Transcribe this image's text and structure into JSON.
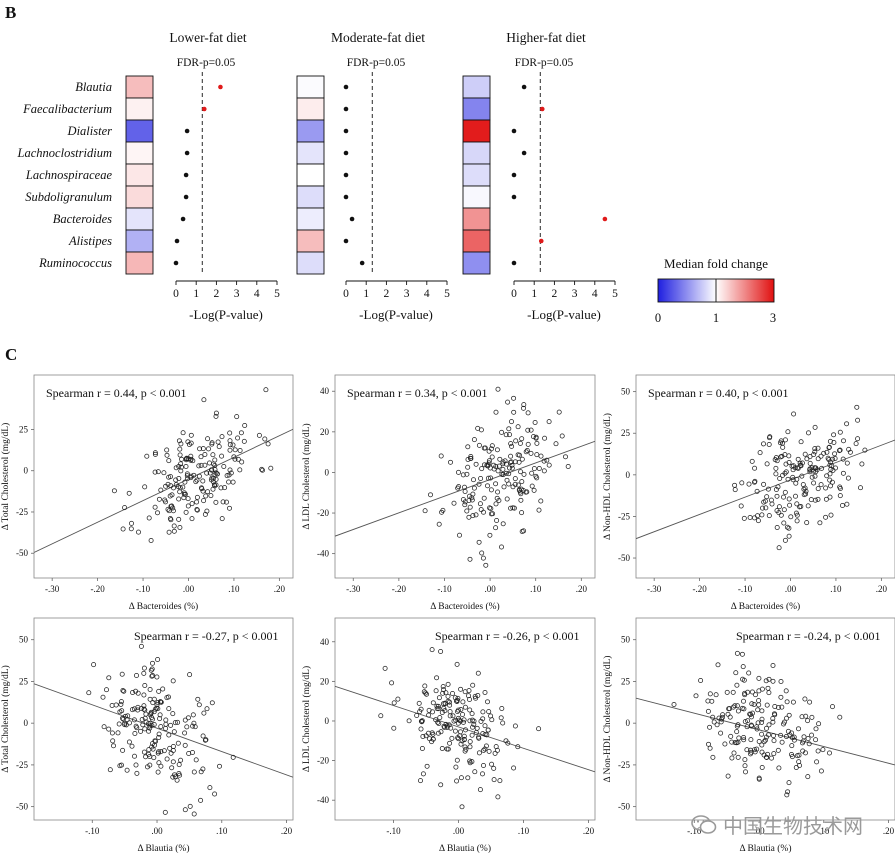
{
  "panel_b_label": "B",
  "panel_c_label": "C",
  "watermark_text": "中国生物技术网",
  "heatmap_panels": {
    "taxa": [
      "Blautia",
      "Faecalibacterium",
      "Dialister",
      "Lachnoclostridium",
      "Lachnospiraceae",
      "Subdoligranulum",
      "Bacteroides",
      "Alistipes",
      "Ruminococcus"
    ],
    "fdr_label": "FDR-p=0.05",
    "xlabel": "-Log(P-value)",
    "xticks": [
      0,
      1,
      2,
      3,
      4,
      5
    ],
    "legend": {
      "title": "Median fold change",
      "ticks": [
        "0",
        "1",
        "3"
      ],
      "colors": {
        "low": "#1f1fe0",
        "mid": "#ffffff",
        "high": "#e01010"
      }
    },
    "panels": [
      {
        "title": "Lower-fat diet",
        "fold_change": [
          1.55,
          1.12,
          0.3,
          1.08,
          1.2,
          1.3,
          0.88,
          0.65,
          1.6
        ],
        "neglog_p": [
          2.2,
          1.4,
          0.55,
          0.55,
          0.5,
          0.5,
          0.35,
          0.05,
          0.0
        ],
        "significant": [
          true,
          true,
          false,
          false,
          false,
          false,
          false,
          false,
          false
        ]
      },
      {
        "title": "Moderate-fat diet",
        "fold_change": [
          0.98,
          1.15,
          0.55,
          0.88,
          1.0,
          0.85,
          0.92,
          1.55,
          0.85
        ],
        "neglog_p": [
          0.0,
          0.0,
          0.0,
          0.0,
          0.0,
          0.0,
          0.3,
          0.0,
          0.8
        ],
        "significant": [
          false,
          false,
          false,
          false,
          false,
          false,
          false,
          false,
          false
        ]
      },
      {
        "title": "Higher-fat diet",
        "fold_change": [
          0.78,
          0.45,
          2.9,
          0.82,
          0.85,
          0.97,
          1.9,
          2.3,
          0.5
        ],
        "neglog_p": [
          0.5,
          1.4,
          0.0,
          0.5,
          0.0,
          0.0,
          4.5,
          1.35,
          0.0
        ],
        "significant": [
          false,
          true,
          false,
          false,
          false,
          false,
          true,
          true,
          false
        ]
      }
    ]
  },
  "chart_data": [
    {
      "type": "scatter",
      "stat": "Spearman r = 0.44, p < 0.001",
      "xlabel": "Δ Bacteroides (%)",
      "ylabel": "Δ Total Cholesterol (mg/dL)",
      "xlim": [
        -0.34,
        0.23
      ],
      "ylim": [
        -65,
        58
      ],
      "xticks": [
        "-.30",
        "-.20",
        "-.10",
        ".00",
        ".10",
        ".20"
      ],
      "xtick_vals": [
        -0.3,
        -0.2,
        -0.1,
        0.0,
        0.1,
        0.2
      ],
      "yticks": [
        "-50",
        "-25",
        "0",
        "25"
      ],
      "ytick_vals": [
        -50,
        -25,
        0,
        25
      ],
      "fit": {
        "slope": 131,
        "intercept": -5
      },
      "seed": 11,
      "center_x": 0.02,
      "sd_x": 0.065,
      "sd_y": 16
    },
    {
      "type": "scatter",
      "stat": "Spearman r = 0.34, p < 0.001",
      "xlabel": "Δ Bacteroides (%)",
      "ylabel": "Δ LDL Cholesterol (mg/dL)",
      "xlim": [
        -0.34,
        0.23
      ],
      "ylim": [
        -52,
        48
      ],
      "xticks": [
        "-.30",
        "-.20",
        "-.10",
        ".00",
        ".10",
        ".20"
      ],
      "xtick_vals": [
        -0.3,
        -0.2,
        -0.1,
        0.0,
        0.1,
        0.2
      ],
      "yticks": [
        "-40",
        "-20",
        "0",
        "20",
        "40"
      ],
      "ytick_vals": [
        -40,
        -20,
        0,
        20,
        40
      ],
      "fit": {
        "slope": 82,
        "intercept": -3.5
      },
      "seed": 23,
      "center_x": 0.02,
      "sd_x": 0.06,
      "sd_y": 14
    },
    {
      "type": "scatter",
      "stat": "Spearman r = 0.40, p < 0.001",
      "xlabel": "Δ Bacteroides (%)",
      "ylabel": "Δ Non-HDL Cholesterol (mg/dL)",
      "xlim": [
        -0.34,
        0.23
      ],
      "ylim": [
        -62,
        60
      ],
      "xticks": [
        "-.30",
        "-.20",
        "-.10",
        ".00",
        ".10",
        ".20"
      ],
      "xtick_vals": [
        -0.3,
        -0.2,
        -0.1,
        0.0,
        0.1,
        0.2
      ],
      "yticks": [
        "-50",
        "-25",
        "0",
        "25",
        "50"
      ],
      "ytick_vals": [
        -50,
        -25,
        0,
        25,
        50
      ],
      "fit": {
        "slope": 104,
        "intercept": -3
      },
      "seed": 37,
      "center_x": 0.02,
      "sd_x": 0.06,
      "sd_y": 16
    },
    {
      "type": "scatter",
      "stat": "Spearman r = -0.27, p < 0.001",
      "xlabel": "Δ Blautia (%)",
      "ylabel": "Δ Total Cholesterol (mg/dL)",
      "xlim": [
        -0.19,
        0.21
      ],
      "ylim": [
        -58,
        63
      ],
      "xticks": [
        "-.10",
        ".00",
        ".10",
        ".20"
      ],
      "xtick_vals": [
        -0.1,
        0.0,
        0.1,
        0.2
      ],
      "yticks": [
        "-50",
        "-25",
        "0",
        "25",
        "50"
      ],
      "ytick_vals": [
        -50,
        -25,
        0,
        25,
        50
      ],
      "fit": {
        "slope": -140,
        "intercept": -3
      },
      "seed": 41,
      "center_x": 0.0,
      "sd_x": 0.045,
      "sd_y": 17
    },
    {
      "type": "scatter",
      "stat": "Spearman r = -0.26, p < 0.001",
      "xlabel": "Δ Blautia (%)",
      "ylabel": "Δ LDL Cholesterol (mg/dL)",
      "xlim": [
        -0.19,
        0.21
      ],
      "ylim": [
        -50,
        52
      ],
      "xticks": [
        "-.10",
        ".00",
        ".10",
        ".20"
      ],
      "xtick_vals": [
        -0.1,
        0.0,
        0.1,
        0.2
      ],
      "yticks": [
        "-40",
        "-20",
        "0",
        "20",
        "40"
      ],
      "ytick_vals": [
        -40,
        -20,
        0,
        20,
        40
      ],
      "fit": {
        "slope": -108,
        "intercept": -3
      },
      "seed": 53,
      "center_x": 0.0,
      "sd_x": 0.045,
      "sd_y": 14
    },
    {
      "type": "scatter",
      "stat": "Spearman r = -0.24, p < 0.001",
      "xlabel": "Δ Blautia (%)",
      "ylabel": "Δ Non-HDL Cholesterol (mg/dL)",
      "xlim": [
        -0.19,
        0.21
      ],
      "ylim": [
        -58,
        63
      ],
      "xticks": [
        "-.10",
        ".00",
        ".10",
        ".20"
      ],
      "xtick_vals": [
        -0.1,
        0.0,
        0.1,
        0.2
      ],
      "yticks": [
        "-50",
        "-25",
        "0",
        "25",
        "50"
      ],
      "ytick_vals": [
        -50,
        -25,
        0,
        25,
        50
      ],
      "fit": {
        "slope": -100,
        "intercept": -4
      },
      "seed": 67,
      "center_x": 0.0,
      "sd_x": 0.045,
      "sd_y": 16
    }
  ]
}
